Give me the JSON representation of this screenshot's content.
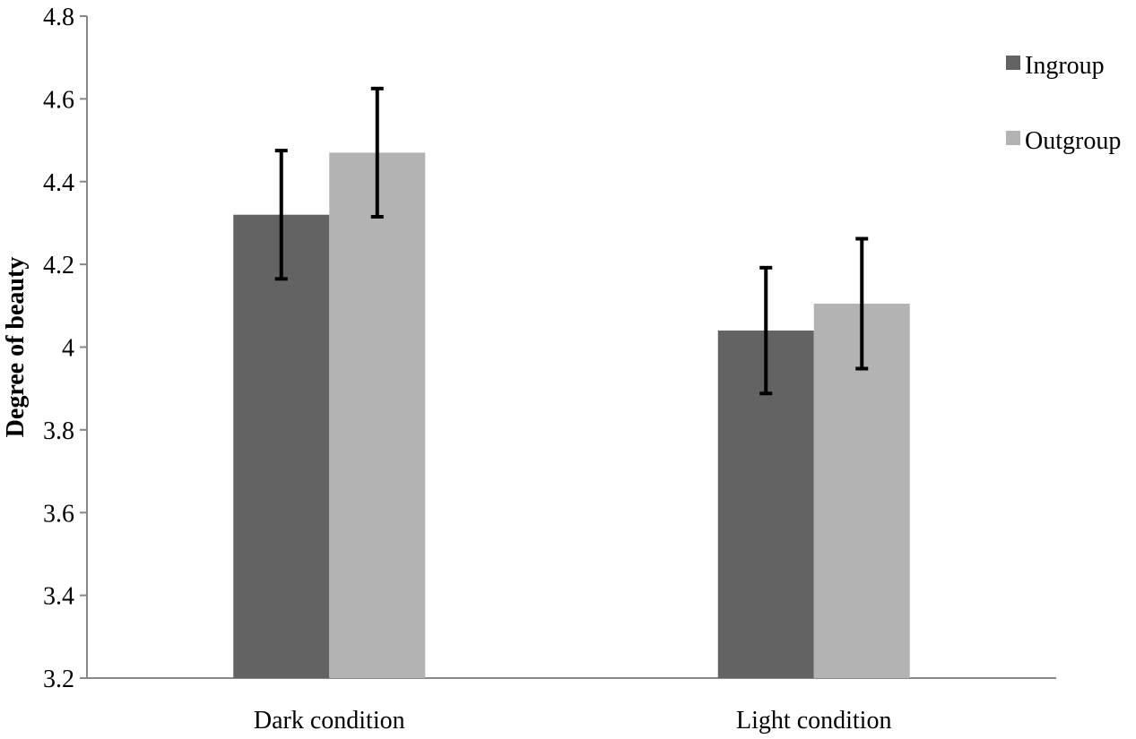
{
  "chart_data": {
    "type": "bar",
    "title": "",
    "xlabel": "",
    "ylabel": "Degree of beauty",
    "ylim": [
      3.2,
      4.8
    ],
    "yticks": [
      3.2,
      3.4,
      3.6,
      3.8,
      4,
      4.2,
      4.4,
      4.6,
      4.8
    ],
    "ytick_labels": [
      "3.2",
      "3.4",
      "3.6",
      "3.8",
      "4",
      "4.2",
      "4.4",
      "4.6",
      "4.8"
    ],
    "grid": false,
    "legend_position": "top-right",
    "categories": [
      "Dark condition",
      "Light condition"
    ],
    "series": [
      {
        "name": "Ingroup",
        "color": "#636363",
        "values": [
          4.32,
          4.04
        ],
        "error": [
          0.155,
          0.152
        ]
      },
      {
        "name": "Outgroup",
        "color": "#b3b3b3",
        "values": [
          4.47,
          4.105
        ],
        "error": [
          0.155,
          0.157
        ]
      }
    ]
  }
}
